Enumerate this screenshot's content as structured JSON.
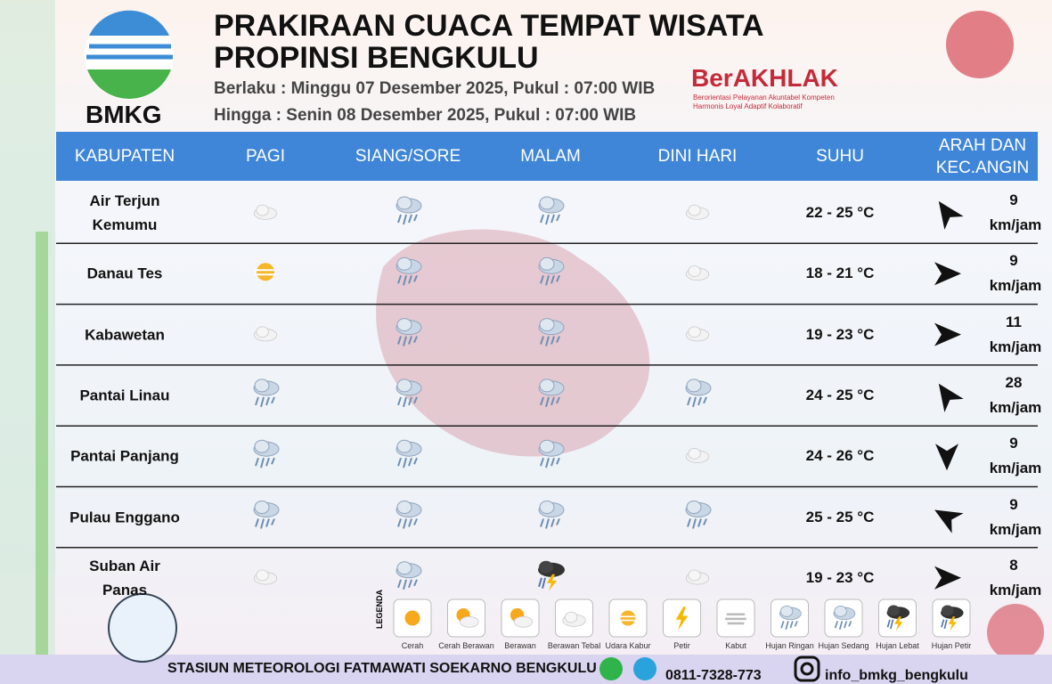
{
  "header": {
    "title_line1": "PRAKIRAAN CUACA TEMPAT WISATA",
    "title_line2": "PROPINSI BENGKULU",
    "valid_from": "Berlaku : Minggu 07 Desember 2025, Pukul : 07:00 WIB",
    "valid_to": "Hingga : Senin 08 Desember 2025, Pukul : 07:00 WIB",
    "logo_text": "BMKG",
    "berakhlak": "BerAKHLAK",
    "berakhlak_line1": "Berorientasi Pelayanan Akuntabel Kompeten",
    "berakhlak_line2": "Harmonis Loyal Adaptif Kolaboratif"
  },
  "table": {
    "columns": [
      "KABUPATEN",
      "PAGI",
      "SIANG/SORE",
      "MALAM",
      "DINI HARI",
      "SUHU",
      "ARAH DAN KEC.ANGIN"
    ],
    "rows": [
      {
        "name": "Air Terjun Kemumu",
        "temp": "22 - 25 °C",
        "wind_speed": 9,
        "wind_unit": "km/jam"
      },
      {
        "name": "Danau Tes",
        "temp": "18 - 21 °C",
        "wind_speed": 9,
        "wind_unit": "km/jam"
      },
      {
        "name": "Kabawetan",
        "temp": "19 - 23 °C",
        "wind_speed": 11,
        "wind_unit": "km/jam"
      },
      {
        "name": "Pantai Linau",
        "temp": "24 - 25 °C",
        "wind_speed": 28,
        "wind_unit": "km/jam"
      },
      {
        "name": "Pantai Panjang",
        "temp": "24 - 26 °C",
        "wind_speed": 9,
        "wind_unit": "km/jam"
      },
      {
        "name": "Pulau Enggano",
        "temp": "25 - 25 °C",
        "wind_speed": 9,
        "wind_unit": "km/jam"
      },
      {
        "name": "Suban Air Panas",
        "temp": "19 - 23 °C",
        "wind_speed": 8,
        "wind_unit": "km/jam"
      }
    ]
  },
  "legend": {
    "title": "LEGENDA",
    "items": [
      "Cerah",
      "Cerah Berawan",
      "Berawan",
      "Berawan Tebal",
      "Udara Kabur",
      "Petir",
      "Kabut",
      "Hujan Ringan",
      "Hujan Sedang",
      "Hujan Lebat",
      "Hujan Petir"
    ]
  },
  "footer": {
    "station": "STASIUN METEOROLOGI FATMAWATI SOEKARNO BENGKULU",
    "phone": "0811-7328-773",
    "instagram": "info_bmkg_bengkulu"
  }
}
